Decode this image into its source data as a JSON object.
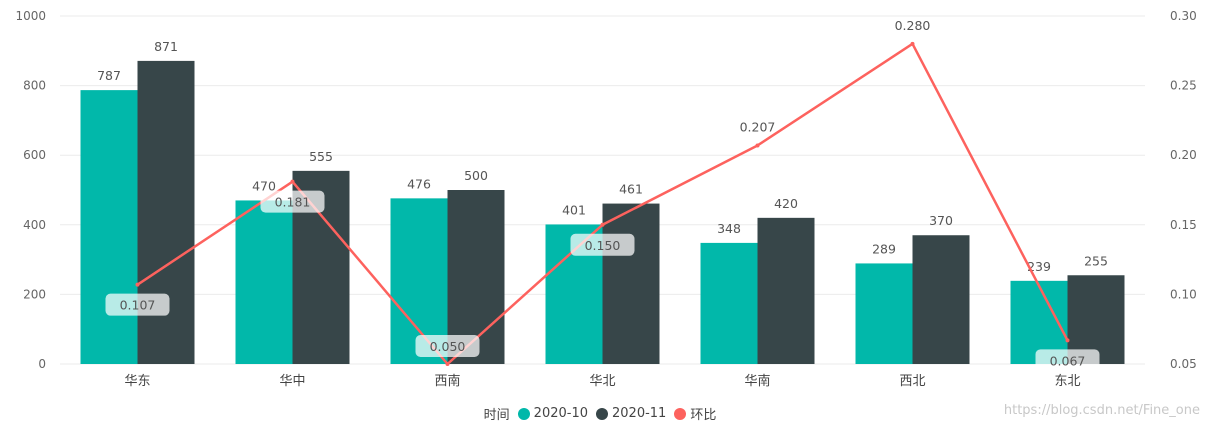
{
  "chart_data": {
    "type": "bar",
    "categories": [
      "华东",
      "华中",
      "西南",
      "华北",
      "华南",
      "西北",
      "东北"
    ],
    "series": [
      {
        "name": "2020-10",
        "kind": "bar",
        "axis": "left",
        "color": "#01B8AA",
        "values": [
          787,
          470,
          476,
          401,
          348,
          289,
          239
        ]
      },
      {
        "name": "2020-11",
        "kind": "bar",
        "axis": "left",
        "color": "#374649",
        "values": [
          871,
          555,
          500,
          461,
          420,
          370,
          255
        ]
      },
      {
        "name": "环比",
        "kind": "line",
        "axis": "right",
        "color": "#FD625E",
        "values": [
          0.107,
          0.181,
          0.05,
          0.15,
          0.207,
          0.28,
          0.067
        ]
      }
    ],
    "value_labels": {
      "2020-10": [
        "787",
        "470",
        "476",
        "401",
        "348",
        "289",
        "239"
      ],
      "2020-11": [
        "871",
        "555",
        "500",
        "461",
        "420",
        "370",
        "255"
      ],
      "环比": [
        "0.107",
        "0.181",
        "0.050",
        "0.150",
        "0.207",
        "0.280",
        "0.067"
      ]
    },
    "ylim": [
      0,
      1000
    ],
    "yticks": [
      "0",
      "200",
      "400",
      "600",
      "800",
      "1000"
    ],
    "y2lim": [
      0.05,
      0.3
    ],
    "y2ticks": [
      "0.05",
      "0.10",
      "0.15",
      "0.20",
      "0.25",
      "0.30"
    ],
    "legend": {
      "title": "时间",
      "position": "bottom-center"
    },
    "grid": true
  },
  "watermark": "https://blog.csdn.net/Fine_one"
}
